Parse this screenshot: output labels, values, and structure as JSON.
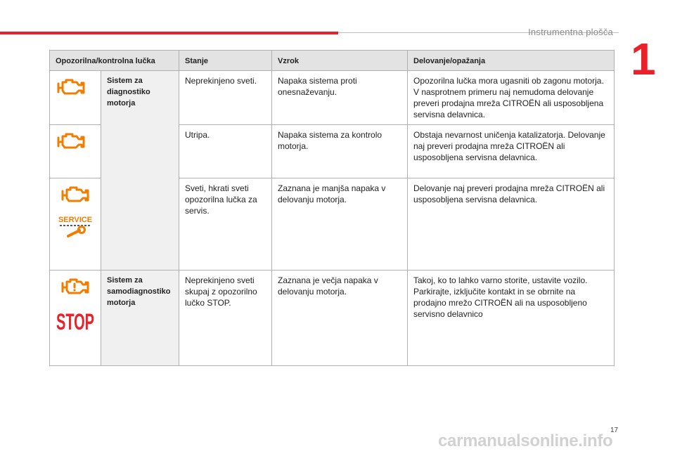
{
  "header": {
    "section_title": "Instrumentna plošča",
    "chapter_number": "1"
  },
  "colors": {
    "accent": "#e8212b",
    "icon_orange": "#ef7d00",
    "icon_red": "#e8212b"
  },
  "table": {
    "columns": [
      "Opozorilna/kontrolna lučka",
      "Stanje",
      "Vzrok",
      "Delovanje/opažanja"
    ],
    "group1": {
      "system": "Sistem za diagnostiko motorja",
      "rows": [
        {
          "icons": [
            "engine-icon"
          ],
          "stanje": "Neprekinjeno sveti.",
          "vzrok": "Napaka sistema proti onesnaževanju.",
          "delovanje": "Opozorilna lučka mora ugasniti ob zagonu motorja. V nasprotnem primeru naj nemudoma delovanje preveri prodajna mreža CITROËN ali usposobljena servisna delavnica."
        },
        {
          "icons": [
            "engine-icon"
          ],
          "stanje": "Utripa.",
          "vzrok": "Napaka sistema za kontrolo motorja.",
          "delovanje": "Obstaja nevarnost uničenja katalizatorja. Delovanje naj preveri prodajna mreža CITROËN ali usposobljena servisna delavnica."
        },
        {
          "icons": [
            "engine-icon",
            "service-icon"
          ],
          "service_text": "SERVICE",
          "stanje": "Sveti, hkrati sveti opozorilna lučka za servis.",
          "vzrok": "Zaznana je manjša napaka v delovanju motorja.",
          "delovanje": "Delovanje naj preveri prodajna mreža CITROËN ali usposobljena servisna delavnica."
        }
      ]
    },
    "group2": {
      "system": "Sistem za samodiagnostiko motorja",
      "rows": [
        {
          "icons": [
            "engine-fault-icon",
            "stop-icon"
          ],
          "stop_text": "STOP",
          "stanje": "Neprekinjeno sveti skupaj z opozorilno lučko STOP.",
          "vzrok": "Zaznana je večja napaka v delovanju motorja.",
          "delovanje": "Takoj, ko to lahko varno storite, ustavite vozilo. Parkirajte, izključite kontakt in se obrnite na prodajno mrežo CITROËN ali na usposobljeno servisno delavnico"
        }
      ]
    }
  },
  "footer": {
    "page_number": "17",
    "watermark": "carmanualsonline.info"
  }
}
